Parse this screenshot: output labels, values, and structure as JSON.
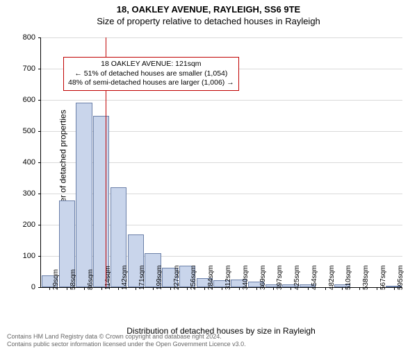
{
  "title_line1": "18, OAKLEY AVENUE, RAYLEIGH, SS6 9TE",
  "title_line2": "Size of property relative to detached houses in Rayleigh",
  "yaxis_title": "Number of detached properties",
  "xaxis_title": "Distribution of detached houses by size in Rayleigh",
  "chart": {
    "type": "histogram",
    "ylim": [
      0,
      800
    ],
    "ytick_step": 100,
    "background_color": "#ffffff",
    "grid_color": "#e0e0e0",
    "bar_color": "#c9d5eb",
    "bar_border_color": "#6a7fa8",
    "marker_color": "#c00000",
    "x_labels": [
      "29sqm",
      "58sqm",
      "86sqm",
      "114sqm",
      "142sqm",
      "171sqm",
      "199sqm",
      "227sqm",
      "256sqm",
      "284sqm",
      "312sqm",
      "340sqm",
      "369sqm",
      "397sqm",
      "425sqm",
      "454sqm",
      "482sqm",
      "510sqm",
      "538sqm",
      "567sqm",
      "595sqm"
    ],
    "values": [
      38,
      278,
      592,
      548,
      320,
      170,
      110,
      62,
      68,
      30,
      22,
      24,
      18,
      10,
      10,
      8,
      0,
      8,
      0,
      0,
      3
    ],
    "marker_x_value": 121,
    "x_min": 14.5,
    "x_max": 609.5
  },
  "annotation": {
    "line1": "18 OAKLEY AVENUE: 121sqm",
    "line2": "← 51% of detached houses are smaller (1,054)",
    "line3": "48% of semi-detached houses are larger (1,006) →"
  },
  "footer_line1": "Contains HM Land Registry data © Crown copyright and database right 2024.",
  "footer_line2": "Contains public sector information licensed under the Open Government Licence v3.0."
}
